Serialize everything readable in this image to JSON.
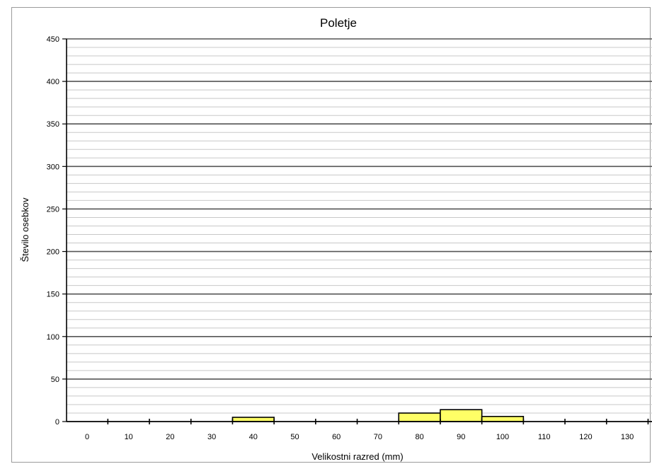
{
  "chart_data": {
    "type": "bar",
    "title": "Poletje",
    "xlabel": "Velikostni razred (mm)",
    "ylabel": "Število osebkov",
    "ylim": [
      0,
      450
    ],
    "y_major_step": 50,
    "y_minor_step": 10,
    "x_tick_labels": [
      "0",
      "10",
      "20",
      "30",
      "40",
      "50",
      "60",
      "70",
      "80",
      "90",
      "100",
      "110",
      "120",
      "130"
    ],
    "categories": [
      "0",
      "10",
      "20",
      "30",
      "40",
      "50",
      "60",
      "70",
      "80",
      "90",
      "100",
      "110",
      "120",
      "130"
    ],
    "values": [
      0,
      0,
      0,
      0,
      5,
      0,
      0,
      0,
      10,
      14,
      6,
      0,
      0,
      0
    ],
    "grid": true,
    "bar_color": "#ffff66",
    "bar_edge_color": "#000000"
  }
}
